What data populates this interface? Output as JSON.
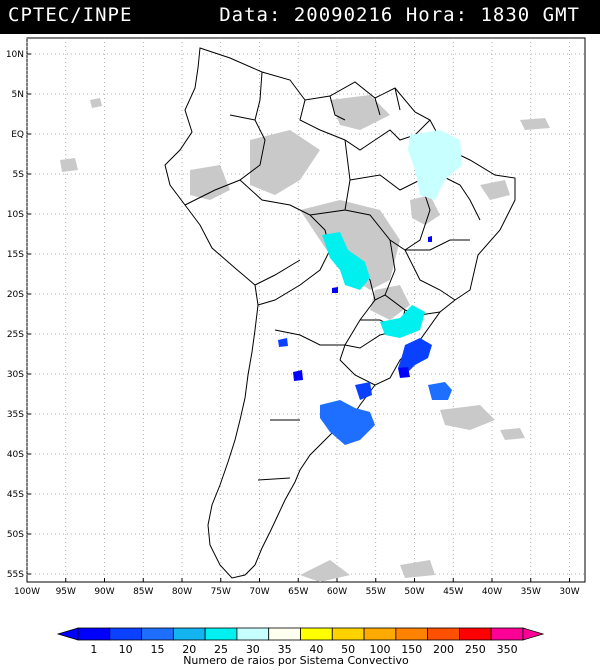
{
  "header": {
    "org": "CPTEC/INPE",
    "date_label": "Data:",
    "date_value": "20090216",
    "time_label": "Hora:",
    "time_value": "1830 GMT"
  },
  "map": {
    "lat_labels": [
      "10N",
      "5N",
      "EQ",
      "5S",
      "10S",
      "15S",
      "20S",
      "25S",
      "30S",
      "35S",
      "40S",
      "45S",
      "50S",
      "55S"
    ],
    "lon_labels": [
      "100W",
      "95W",
      "90W",
      "85W",
      "80W",
      "75W",
      "70W",
      "65W",
      "60W",
      "55W",
      "50W",
      "45W",
      "40W",
      "35W",
      "30W"
    ],
    "lon_range": [
      -100,
      -28
    ],
    "lat_range": [
      12,
      -56
    ]
  },
  "legend": {
    "title": "Numero de raios por Sistema Convectivo",
    "values": [
      "1",
      "10",
      "15",
      "20",
      "25",
      "30",
      "35",
      "40",
      "50",
      "100",
      "150",
      "200",
      "250",
      "350"
    ],
    "colors": [
      "#0000ff",
      "#0a40ff",
      "#1e6eff",
      "#14b4f0",
      "#00f0f0",
      "#c8ffff",
      "#fffff0",
      "#ffff00",
      "#ffd200",
      "#ffaa00",
      "#ff8200",
      "#ff5000",
      "#ff0000",
      "#ff0096"
    ]
  }
}
